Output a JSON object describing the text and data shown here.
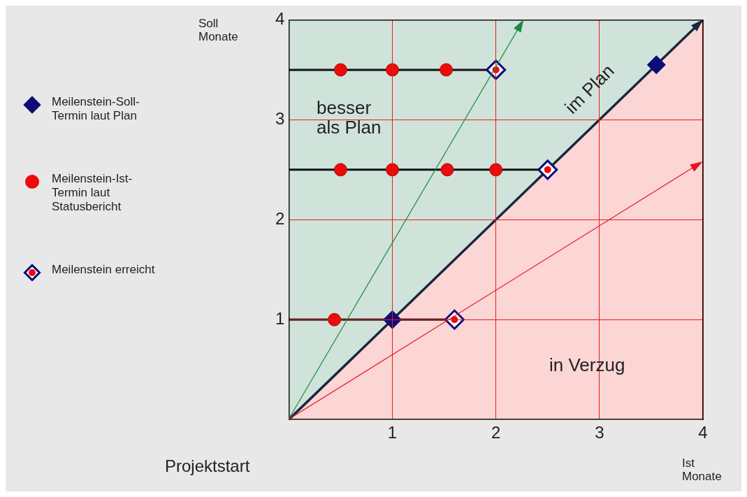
{
  "chart_data": {
    "type": "scatter",
    "xlabel": "Ist Monate",
    "ylabel": "Soll Monate",
    "xlim": [
      0,
      4
    ],
    "ylim": [
      0,
      4
    ],
    "xticks": [
      1,
      2,
      3,
      4
    ],
    "yticks": [
      1,
      2,
      3,
      4
    ],
    "grid": true,
    "legend": "left",
    "annotations": [
      "besser als Plan",
      "im Plan",
      "in Verzug",
      "Projektstart"
    ],
    "series": [
      {
        "type": "area",
        "color": "#fcd5d5",
        "x": [
          0,
          4
        ],
        "values": [
          0,
          4
        ]
      },
      {
        "type": "line",
        "color": "#111111",
        "x": [
          0,
          2
        ],
        "values": [
          3.5,
          3.5
        ]
      },
      {
        "type": "line",
        "color": "#111111",
        "x": [
          0,
          2.5
        ],
        "values": [
          2.5,
          2.5
        ]
      },
      {
        "type": "line",
        "color": "#111111",
        "x": [
          0,
          1.6
        ],
        "values": [
          1,
          1
        ]
      },
      {
        "name": "Meilenstein-Soll-Termin laut Plan",
        "marker": "diamond",
        "color": "#0c0c78",
        "x": [
          1,
          3.55
        ],
        "values": [
          1,
          3.55
        ]
      },
      {
        "name": "Meilenstein-Ist-Termin laut Statusbericht",
        "marker": "circle",
        "color": "#ee0a0a",
        "x": [
          0.5,
          1,
          1.52,
          0.5,
          1,
          1.53,
          2,
          0.44
        ],
        "values": [
          3.5,
          3.5,
          3.5,
          2.5,
          2.5,
          2.5,
          2.5,
          1
        ]
      },
      {
        "name": "Meilenstein erreicht",
        "marker": "diamond",
        "color": "#0c0c78",
        "x": [
          2,
          2.5,
          1.6
        ],
        "values": [
          3.5,
          2.5,
          1
        ]
      }
    ]
  }
}
